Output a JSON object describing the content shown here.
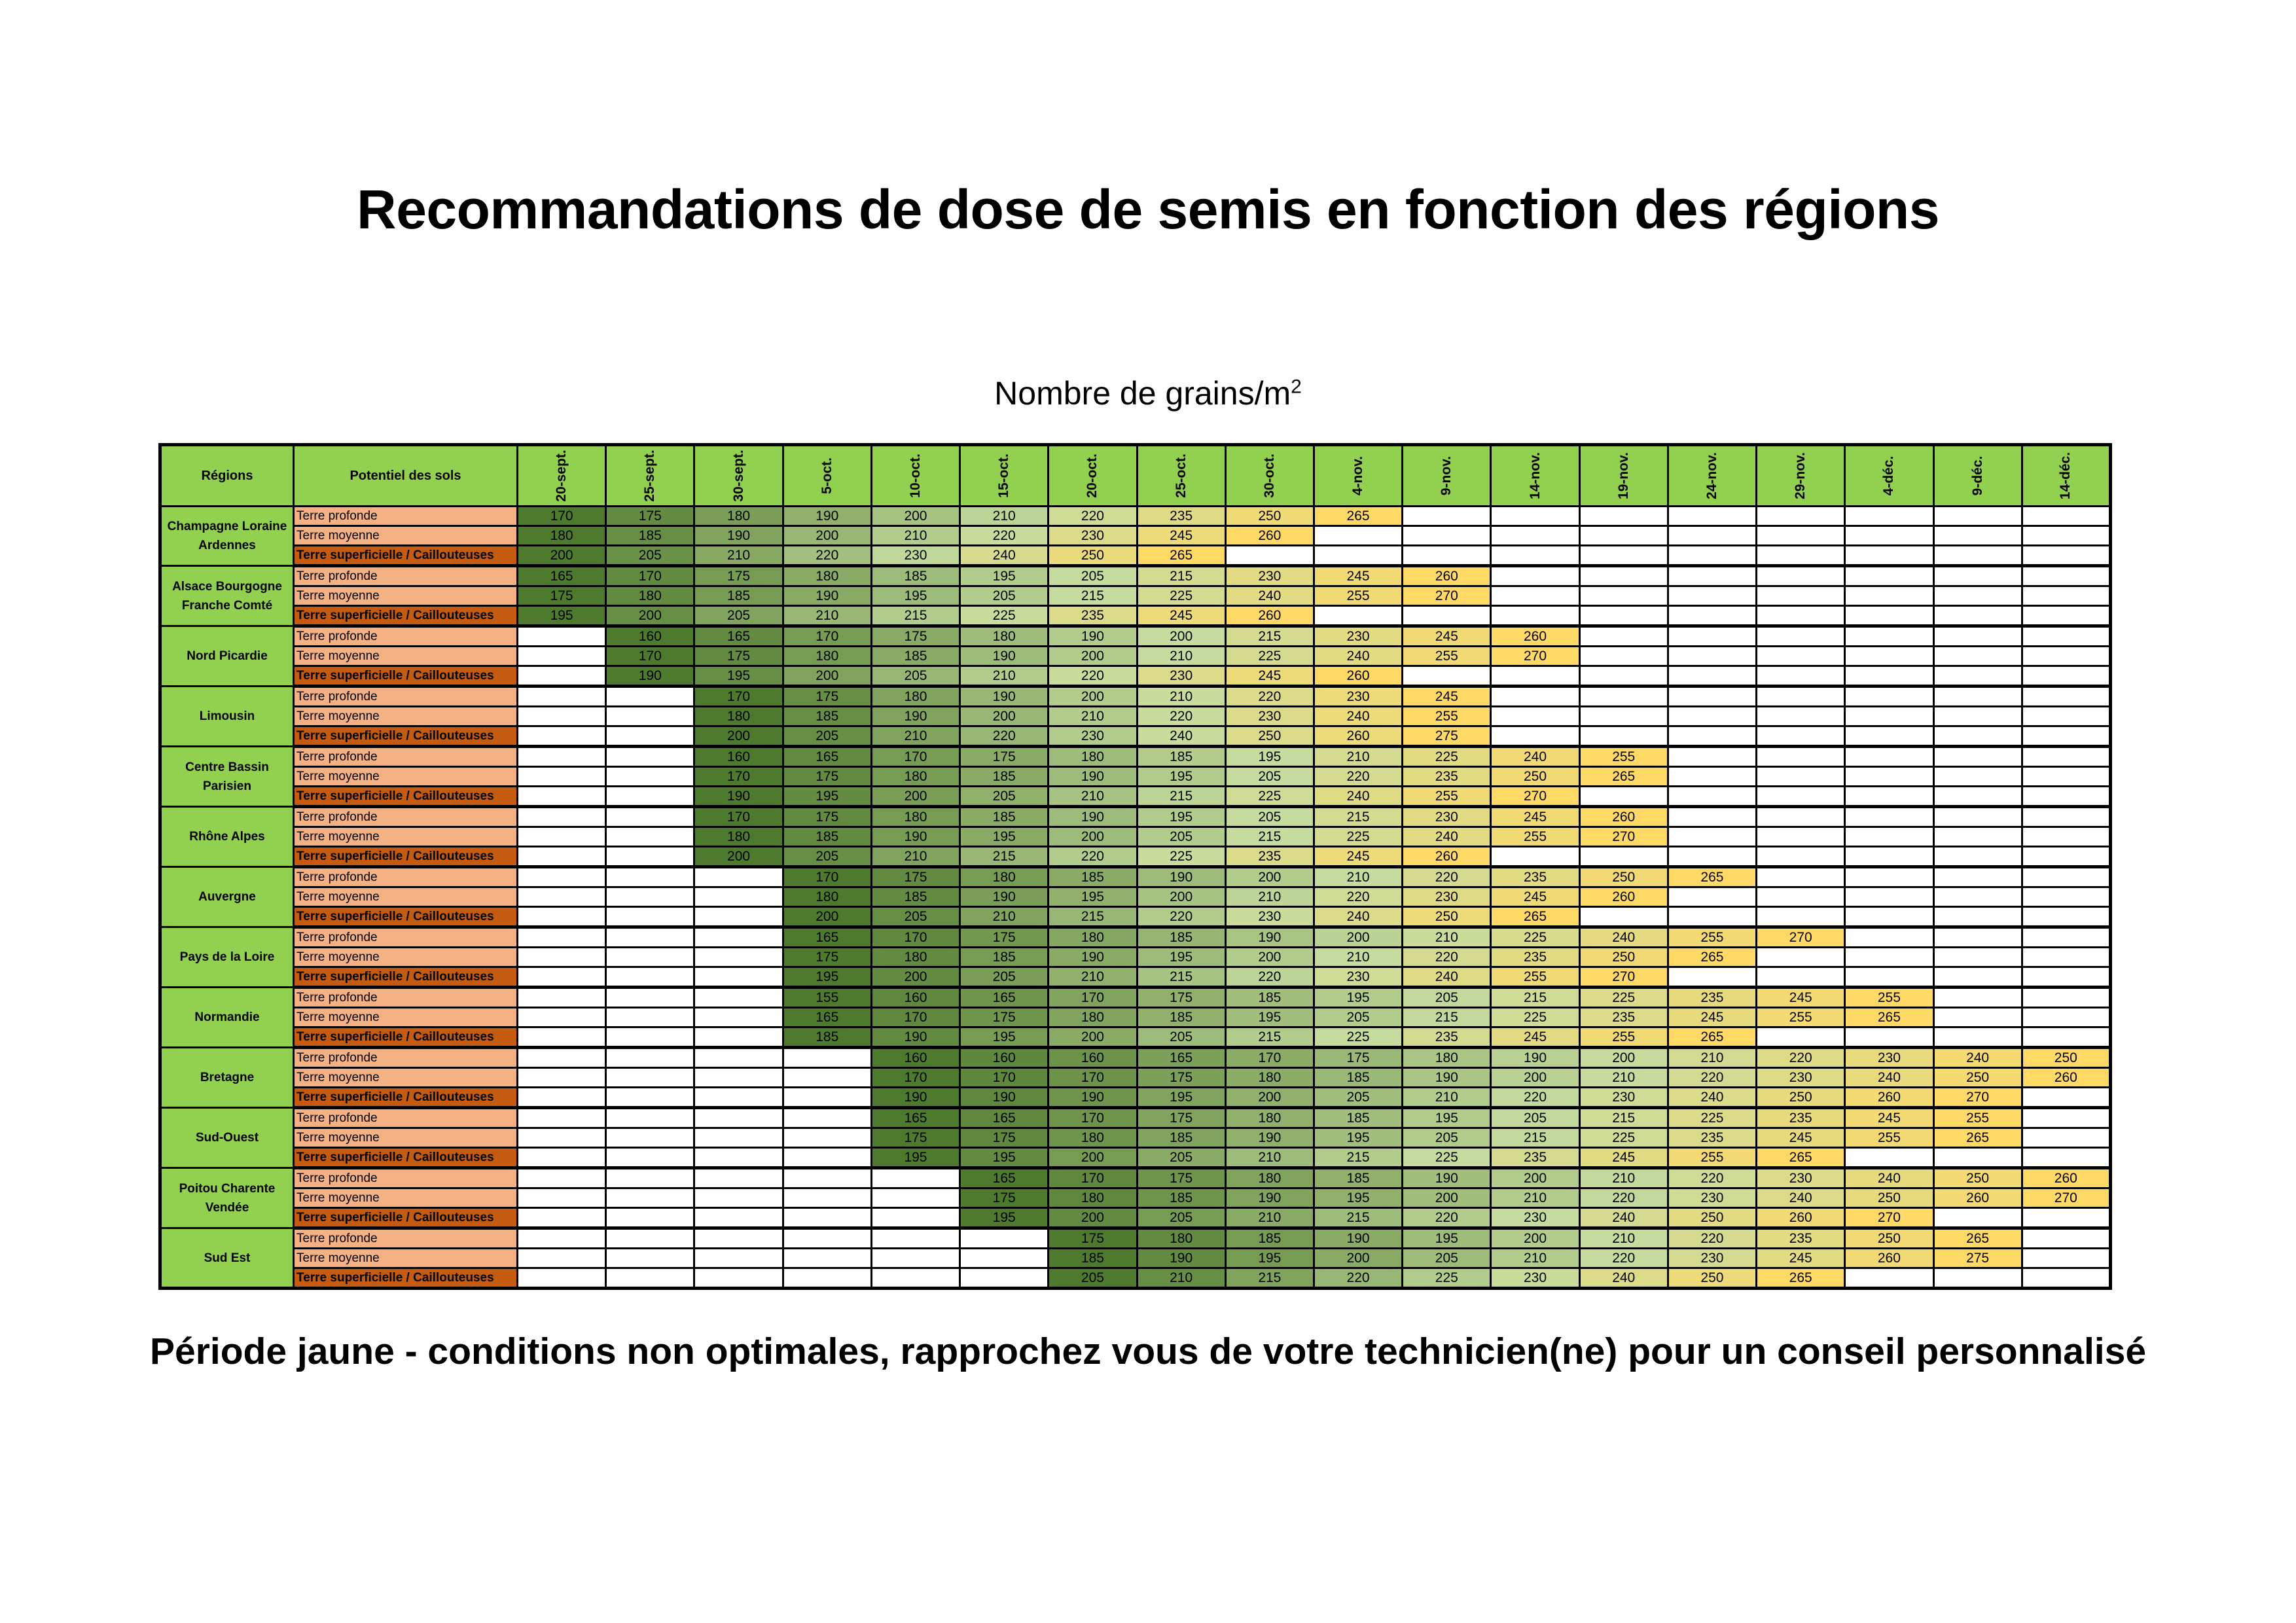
{
  "title": "Recommandations de dose de semis en fonction des régions",
  "subtitle": "Nombre de grains/m",
  "subtitle_sup": "2",
  "footer": "Période jaune - conditions non optimales, rapprochez vous de votre technicien(ne) pour un conseil personnalisé",
  "table": {
    "header_regions": "Régions",
    "header_soil": "Potentiel des sols",
    "dates": [
      "20-sept.",
      "25-sept.",
      "30-sept.",
      "5-oct.",
      "10-oct.",
      "15-oct.",
      "20-oct.",
      "25-oct.",
      "30-oct.",
      "4-nov.",
      "9-nov.",
      "14-nov.",
      "19-nov.",
      "24-nov.",
      "29-nov.",
      "4-déc.",
      "9-déc.",
      "14-déc."
    ],
    "soil_types": [
      "Terre profonde",
      "Terre moyenne",
      "Terre superficielle / Caillouteuses"
    ],
    "colors": {
      "header": "#92d050",
      "soil_light": "#f4b183",
      "soil_dark": "#c55a11",
      "green_darkest": "#4e7a2e",
      "green_light": "#c5dc9e",
      "yellow": "#ffd966"
    },
    "regions": [
      {
        "name": "Champagne Loraine Ardennes",
        "rows": [
          [
            170,
            175,
            180,
            190,
            200,
            210,
            220,
            235,
            250,
            265,
            null,
            null,
            null,
            null,
            null,
            null,
            null,
            null
          ],
          [
            180,
            185,
            190,
            200,
            210,
            220,
            230,
            245,
            260,
            null,
            null,
            null,
            null,
            null,
            null,
            null,
            null,
            null
          ],
          [
            200,
            205,
            210,
            220,
            230,
            240,
            250,
            265,
            null,
            null,
            null,
            null,
            null,
            null,
            null,
            null,
            null,
            null
          ]
        ]
      },
      {
        "name": "Alsace Bourgogne Franche Comté",
        "rows": [
          [
            165,
            170,
            175,
            180,
            185,
            195,
            205,
            215,
            230,
            245,
            260,
            null,
            null,
            null,
            null,
            null,
            null,
            null
          ],
          [
            175,
            180,
            185,
            190,
            195,
            205,
            215,
            225,
            240,
            255,
            270,
            null,
            null,
            null,
            null,
            null,
            null,
            null
          ],
          [
            195,
            200,
            205,
            210,
            215,
            225,
            235,
            245,
            260,
            null,
            null,
            null,
            null,
            null,
            null,
            null,
            null,
            null
          ]
        ]
      },
      {
        "name": "Nord Picardie",
        "rows": [
          [
            null,
            160,
            165,
            170,
            175,
            180,
            190,
            200,
            215,
            230,
            245,
            260,
            null,
            null,
            null,
            null,
            null,
            null
          ],
          [
            null,
            170,
            175,
            180,
            185,
            190,
            200,
            210,
            225,
            240,
            255,
            270,
            null,
            null,
            null,
            null,
            null,
            null
          ],
          [
            null,
            190,
            195,
            200,
            205,
            210,
            220,
            230,
            245,
            260,
            null,
            null,
            null,
            null,
            null,
            null,
            null,
            null
          ]
        ]
      },
      {
        "name": "Limousin",
        "rows": [
          [
            null,
            null,
            170,
            175,
            180,
            190,
            200,
            210,
            220,
            230,
            245,
            null,
            null,
            null,
            null,
            null,
            null,
            null
          ],
          [
            null,
            null,
            180,
            185,
            190,
            200,
            210,
            220,
            230,
            240,
            255,
            null,
            null,
            null,
            null,
            null,
            null,
            null
          ],
          [
            null,
            null,
            200,
            205,
            210,
            220,
            230,
            240,
            250,
            260,
            275,
            null,
            null,
            null,
            null,
            null,
            null,
            null
          ]
        ]
      },
      {
        "name": "Centre Bassin Parisien",
        "rows": [
          [
            null,
            null,
            160,
            165,
            170,
            175,
            180,
            185,
            195,
            210,
            225,
            240,
            255,
            null,
            null,
            null,
            null,
            null
          ],
          [
            null,
            null,
            170,
            175,
            180,
            185,
            190,
            195,
            205,
            220,
            235,
            250,
            265,
            null,
            null,
            null,
            null,
            null
          ],
          [
            null,
            null,
            190,
            195,
            200,
            205,
            210,
            215,
            225,
            240,
            255,
            270,
            null,
            null,
            null,
            null,
            null,
            null
          ]
        ]
      },
      {
        "name": "Rhône Alpes",
        "rows": [
          [
            null,
            null,
            170,
            175,
            180,
            185,
            190,
            195,
            205,
            215,
            230,
            245,
            260,
            null,
            null,
            null,
            null,
            null
          ],
          [
            null,
            null,
            180,
            185,
            190,
            195,
            200,
            205,
            215,
            225,
            240,
            255,
            270,
            null,
            null,
            null,
            null,
            null
          ],
          [
            null,
            null,
            200,
            205,
            210,
            215,
            220,
            225,
            235,
            245,
            260,
            null,
            null,
            null,
            null,
            null,
            null,
            null
          ]
        ]
      },
      {
        "name": "Auvergne",
        "rows": [
          [
            null,
            null,
            null,
            170,
            175,
            180,
            185,
            190,
            200,
            210,
            220,
            235,
            250,
            265,
            null,
            null,
            null,
            null
          ],
          [
            null,
            null,
            null,
            180,
            185,
            190,
            195,
            200,
            210,
            220,
            230,
            245,
            260,
            null,
            null,
            null,
            null,
            null
          ],
          [
            null,
            null,
            null,
            200,
            205,
            210,
            215,
            220,
            230,
            240,
            250,
            265,
            null,
            null,
            null,
            null,
            null,
            null
          ]
        ]
      },
      {
        "name": "Pays de la Loire",
        "rows": [
          [
            null,
            null,
            null,
            165,
            170,
            175,
            180,
            185,
            190,
            200,
            210,
            225,
            240,
            255,
            270,
            null,
            null,
            null
          ],
          [
            null,
            null,
            null,
            175,
            180,
            185,
            190,
            195,
            200,
            210,
            220,
            235,
            250,
            265,
            null,
            null,
            null,
            null
          ],
          [
            null,
            null,
            null,
            195,
            200,
            205,
            210,
            215,
            220,
            230,
            240,
            255,
            270,
            null,
            null,
            null,
            null,
            null
          ]
        ]
      },
      {
        "name": "Normandie",
        "rows": [
          [
            null,
            null,
            null,
            155,
            160,
            165,
            170,
            175,
            185,
            195,
            205,
            215,
            225,
            235,
            245,
            255,
            null,
            null
          ],
          [
            null,
            null,
            null,
            165,
            170,
            175,
            180,
            185,
            195,
            205,
            215,
            225,
            235,
            245,
            255,
            265,
            null,
            null
          ],
          [
            null,
            null,
            null,
            185,
            190,
            195,
            200,
            205,
            215,
            225,
            235,
            245,
            255,
            265,
            null,
            null,
            null,
            null
          ]
        ]
      },
      {
        "name": "Bretagne",
        "rows": [
          [
            null,
            null,
            null,
            null,
            160,
            160,
            160,
            165,
            170,
            175,
            180,
            190,
            200,
            210,
            220,
            230,
            240,
            250
          ],
          [
            null,
            null,
            null,
            null,
            170,
            170,
            170,
            175,
            180,
            185,
            190,
            200,
            210,
            220,
            230,
            240,
            250,
            260
          ],
          [
            null,
            null,
            null,
            null,
            190,
            190,
            190,
            195,
            200,
            205,
            210,
            220,
            230,
            240,
            250,
            260,
            270,
            null
          ]
        ]
      },
      {
        "name": "Sud-Ouest",
        "rows": [
          [
            null,
            null,
            null,
            null,
            165,
            165,
            170,
            175,
            180,
            185,
            195,
            205,
            215,
            225,
            235,
            245,
            255,
            null
          ],
          [
            null,
            null,
            null,
            null,
            175,
            175,
            180,
            185,
            190,
            195,
            205,
            215,
            225,
            235,
            245,
            255,
            265,
            null
          ],
          [
            null,
            null,
            null,
            null,
            195,
            195,
            200,
            205,
            210,
            215,
            225,
            235,
            245,
            255,
            265,
            null,
            null,
            null
          ]
        ]
      },
      {
        "name": "Poitou Charente Vendée",
        "rows": [
          [
            null,
            null,
            null,
            null,
            null,
            165,
            170,
            175,
            180,
            185,
            190,
            200,
            210,
            220,
            230,
            240,
            250,
            260
          ],
          [
            null,
            null,
            null,
            null,
            null,
            175,
            180,
            185,
            190,
            195,
            200,
            210,
            220,
            230,
            240,
            250,
            260,
            270
          ],
          [
            null,
            null,
            null,
            null,
            null,
            195,
            200,
            205,
            210,
            215,
            220,
            230,
            240,
            250,
            260,
            270,
            null,
            null
          ]
        ]
      },
      {
        "name": "Sud Est",
        "rows": [
          [
            null,
            null,
            null,
            null,
            null,
            null,
            175,
            180,
            185,
            190,
            195,
            200,
            210,
            220,
            235,
            250,
            265,
            null
          ],
          [
            null,
            null,
            null,
            null,
            null,
            null,
            185,
            190,
            195,
            200,
            205,
            210,
            220,
            230,
            245,
            260,
            275,
            null
          ],
          [
            null,
            null,
            null,
            null,
            null,
            null,
            205,
            210,
            215,
            220,
            225,
            230,
            240,
            250,
            265,
            null,
            null,
            null
          ]
        ]
      }
    ]
  }
}
